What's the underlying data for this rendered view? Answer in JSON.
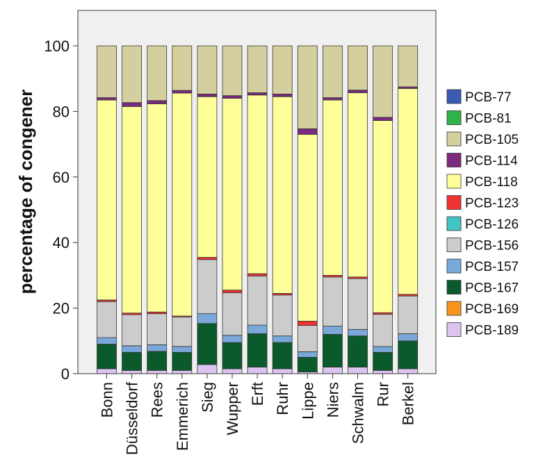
{
  "chart_data": {
    "type": "bar",
    "stacked": true,
    "title": "",
    "xlabel": "",
    "ylabel": "percentage of congener",
    "ylim": [
      0,
      100
    ],
    "yticks": [
      0,
      20,
      40,
      60,
      80,
      100
    ],
    "grid": false,
    "legend_position": "right",
    "categories": [
      "Bonn",
      "Düsseldorf",
      "Rees",
      "Emmerich",
      "Sieg",
      "Wupper",
      "Erft",
      "Ruhr",
      "Lippe",
      "Niers",
      "Schwalm",
      "Rur",
      "Berkel"
    ],
    "series": [
      {
        "name": "PCB-189",
        "color": "#dcc4f0",
        "values": [
          1.5,
          1.0,
          1.0,
          1.0,
          2.8,
          1.5,
          2.0,
          1.5,
          0.5,
          2.0,
          2.0,
          1.0,
          1.5
        ]
      },
      {
        "name": "PCB-169",
        "color": "#f7941d",
        "values": [
          0,
          0,
          0,
          0,
          0,
          0,
          0,
          0,
          0,
          0,
          0,
          0,
          0
        ]
      },
      {
        "name": "PCB-167",
        "color": "#0b5a2c",
        "values": [
          7.5,
          5.5,
          5.8,
          5.5,
          12.5,
          8.0,
          10.2,
          8.0,
          4.5,
          10.0,
          9.5,
          5.5,
          8.5
        ]
      },
      {
        "name": "PCB-157",
        "color": "#7aa8d8",
        "values": [
          2.0,
          2.0,
          2.0,
          1.8,
          3.0,
          2.2,
          2.6,
          2.0,
          1.7,
          2.5,
          2.0,
          1.8,
          2.2
        ]
      },
      {
        "name": "PCB-156",
        "color": "#cccccc",
        "values": [
          11.0,
          9.5,
          9.5,
          9.0,
          16.5,
          13.0,
          15.0,
          12.5,
          8.0,
          15.0,
          15.5,
          9.8,
          11.5
        ]
      },
      {
        "name": "PCB-126",
        "color": "#40c4c4",
        "values": [
          0,
          0,
          0,
          0,
          0,
          0,
          0,
          0,
          0,
          0,
          0,
          0,
          0
        ]
      },
      {
        "name": "PCB-123",
        "color": "#ee3333",
        "values": [
          0.5,
          0.5,
          0.5,
          0.3,
          0.7,
          0.8,
          0.7,
          0.5,
          1.3,
          0.5,
          0.5,
          0.5,
          0.5
        ]
      },
      {
        "name": "PCB-118",
        "color": "#ffff99",
        "values": [
          61.0,
          63.0,
          63.5,
          68.0,
          49.0,
          58.5,
          54.5,
          60.0,
          57.0,
          53.5,
          56.2,
          58.6,
          62.8
        ]
      },
      {
        "name": "PCB-114",
        "color": "#7b2a7e",
        "values": [
          0.7,
          1.2,
          1.0,
          0.8,
          0.8,
          0.8,
          0.7,
          0.8,
          1.7,
          0.7,
          0.8,
          1.0,
          0.5
        ]
      },
      {
        "name": "PCB-105",
        "color": "#d4cf9e",
        "values": [
          15.8,
          17.3,
          16.7,
          13.6,
          14.7,
          15.2,
          14.3,
          14.7,
          25.3,
          15.8,
          13.5,
          21.8,
          12.5
        ]
      },
      {
        "name": "PCB-81",
        "color": "#2db34a",
        "values": [
          0,
          0,
          0,
          0,
          0,
          0,
          0,
          0,
          0,
          0,
          0,
          0,
          0
        ]
      },
      {
        "name": "PCB-77",
        "color": "#3a5bb3",
        "values": [
          0,
          0,
          0,
          0,
          0,
          0,
          0,
          0,
          0,
          0,
          0,
          0,
          0
        ]
      }
    ],
    "legend": [
      "PCB-77",
      "PCB-81",
      "PCB-105",
      "PCB-114",
      "PCB-118",
      "PCB-123",
      "PCB-126",
      "PCB-156",
      "PCB-157",
      "PCB-167",
      "PCB-169",
      "PCB-189"
    ]
  }
}
